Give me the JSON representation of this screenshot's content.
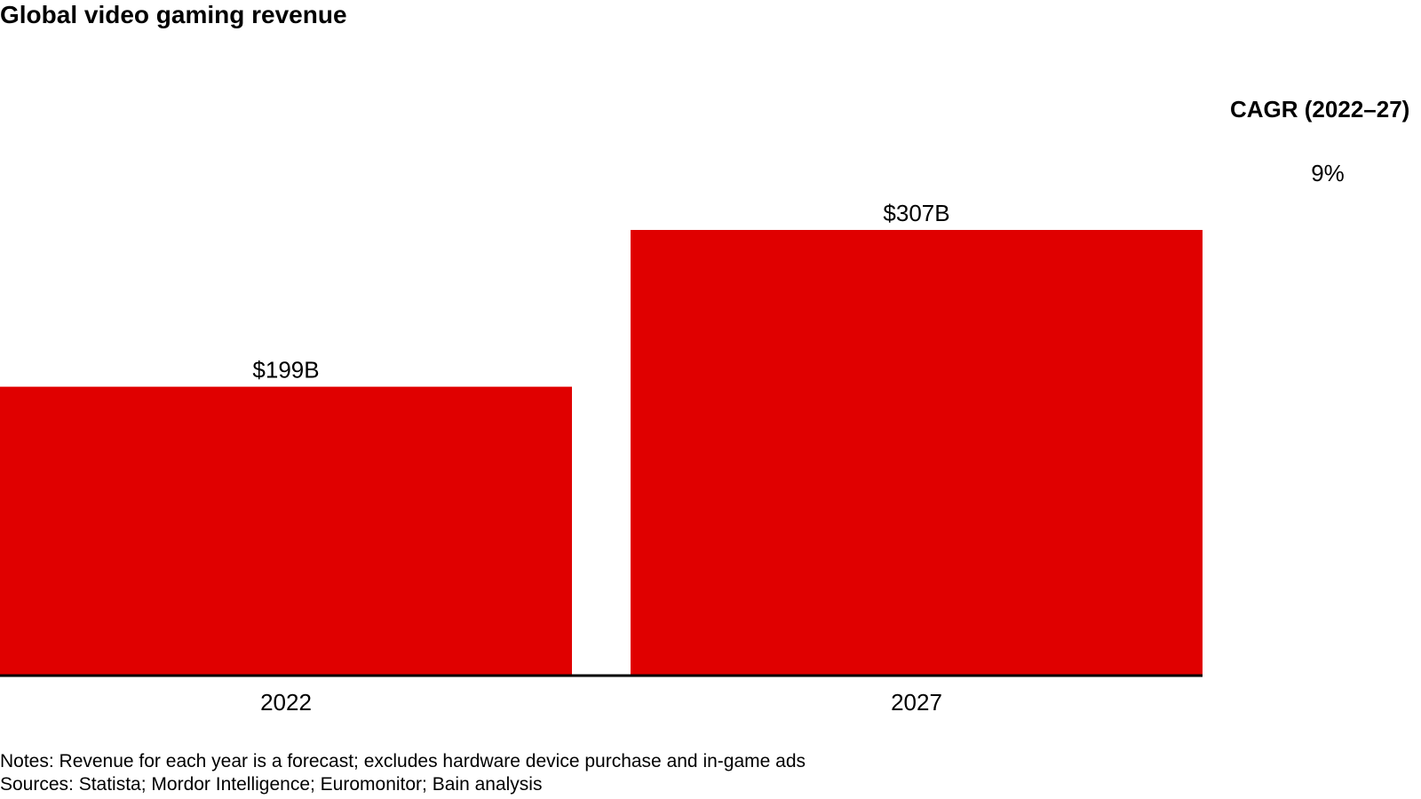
{
  "chart_data": {
    "type": "bar",
    "title": "Global video gaming revenue",
    "categories": [
      "2022",
      "2027"
    ],
    "values": [
      199,
      307
    ],
    "value_labels": [
      "$199B",
      "$307B"
    ],
    "unit": "$B",
    "ylim": [
      0,
      400
    ],
    "grid": false,
    "bar_color": "#E00000",
    "cagr": {
      "header": "CAGR (2022–27)",
      "value": "9%"
    },
    "notes": "Notes: Revenue for each year is a forecast; excludes hardware device purchase and in-game ads",
    "sources": "Sources: Statista; Mordor Intelligence; Euromonitor; Bain analysis"
  }
}
